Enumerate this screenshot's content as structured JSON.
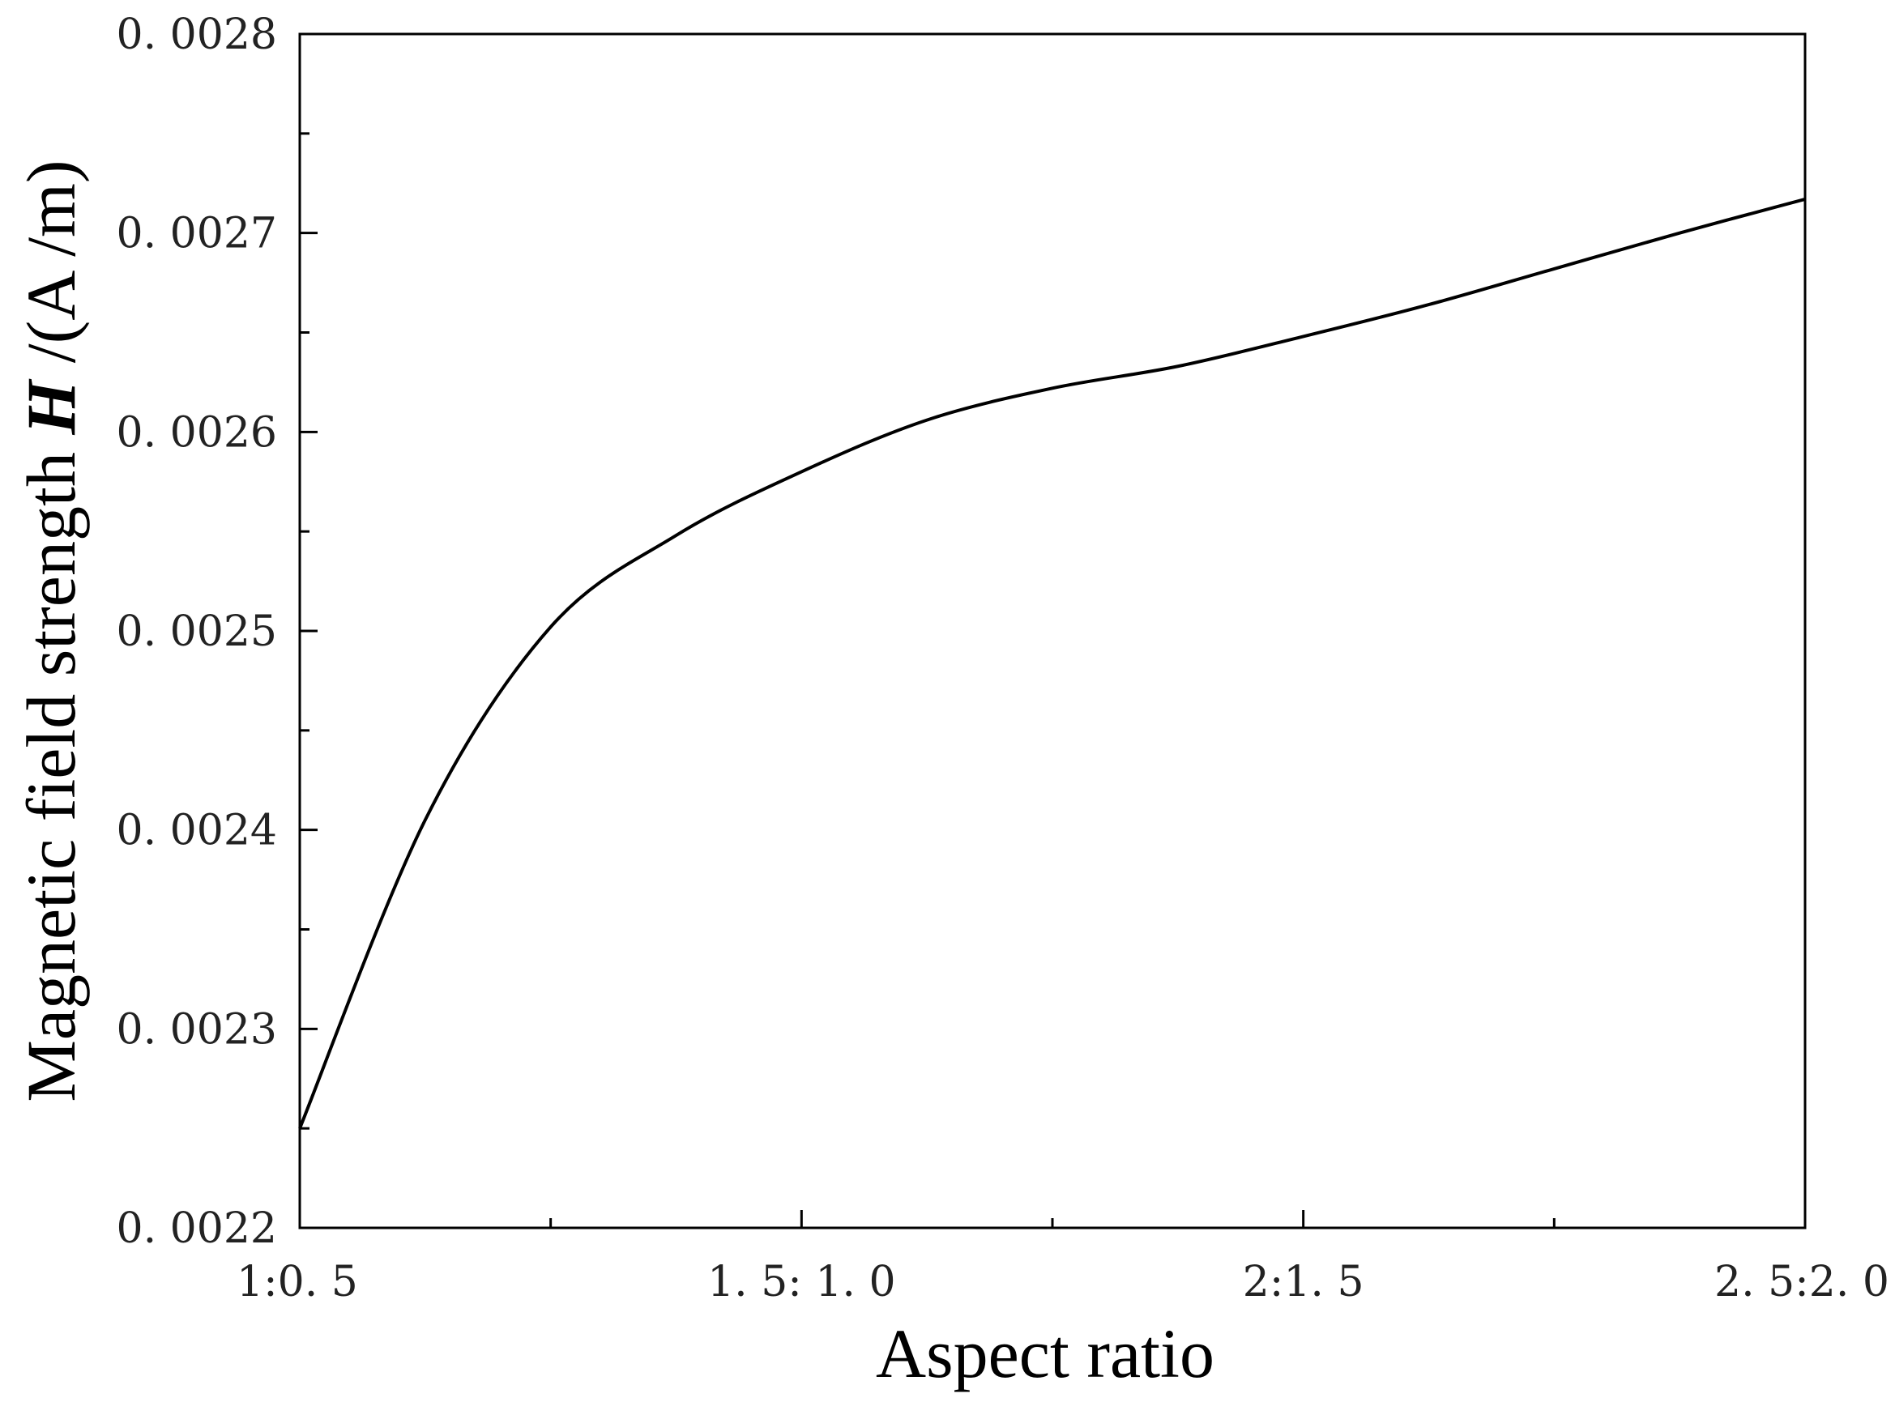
{
  "chart_data": {
    "type": "line",
    "title": "",
    "xlabel": "Aspect ratio",
    "ylabel": {
      "prefix": "Magnetic field strength ",
      "symbol": "H",
      "unit": " /(A /m)"
    },
    "x_tick_labels": [
      "1:0. 5",
      "1. 5: 1. 0",
      "2:1. 5",
      "2. 5:2. 0"
    ],
    "y_tick_labels": [
      "0. 0022",
      "0. 0023",
      "0. 0024",
      "0. 0025",
      "0. 0026",
      "0. 0027",
      "0. 0028"
    ],
    "y_ticks": [
      0.0022,
      0.0023,
      0.0024,
      0.0025,
      0.0026,
      0.0027,
      0.0028
    ],
    "xlim": [
      0,
      3
    ],
    "ylim": [
      0.0022,
      0.0028
    ],
    "grid": false,
    "series": [
      {
        "x": [
          0,
          0.25,
          0.5,
          0.75,
          1.0,
          1.25,
          1.5,
          1.75,
          2.0,
          2.25,
          2.5,
          2.75,
          3.0
        ],
        "values": [
          0.00225,
          0.002405,
          0.002502,
          0.002548,
          0.00258,
          0.002606,
          0.002622,
          0.002633,
          0.002648,
          0.002664,
          0.002682,
          0.0027,
          0.002717
        ]
      }
    ],
    "colors": {
      "line": "#000000",
      "axis": "#000000"
    }
  }
}
